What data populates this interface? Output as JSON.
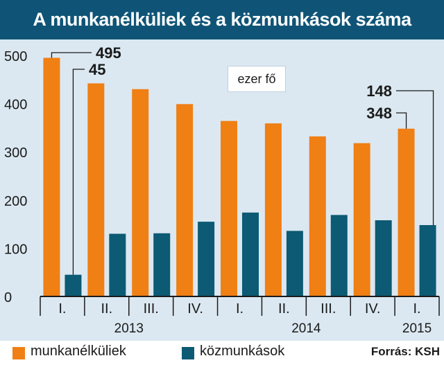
{
  "title": "A munkanélküliek és a közmunkások száma",
  "unit_note": "ezer fő",
  "source": "Forrás: KSH",
  "colors": {
    "title_bg": "#0f5476",
    "plot_bg": "#dbe8f1",
    "unemployed": "#f07f14",
    "public_workers": "#0c5a73",
    "annotation": "#1a1a1a"
  },
  "legend": {
    "unemployed_label": "munkanélküliek",
    "public_workers_label": "közmunkások"
  },
  "chart_data": {
    "type": "bar",
    "categories": [
      "I.",
      "II.",
      "III.",
      "IV.",
      "I.",
      "II.",
      "III.",
      "IV.",
      "I."
    ],
    "year_groups": [
      {
        "label": "2013",
        "start": 0,
        "end": 3
      },
      {
        "label": "2014",
        "start": 4,
        "end": 7
      },
      {
        "label": "2015",
        "start": 8,
        "end": 8
      }
    ],
    "series": [
      {
        "name": "munkanélküliek",
        "values": [
          495,
          442,
          430,
          399,
          364,
          359,
          332,
          318,
          348
        ]
      },
      {
        "name": "közmunkások",
        "values": [
          45,
          130,
          131,
          155,
          174,
          136,
          169,
          158,
          148
        ]
      }
    ],
    "ylim": [
      0,
      500
    ],
    "yticks": [
      0,
      100,
      200,
      300,
      400,
      500
    ],
    "annotations": [
      {
        "text": "495",
        "series": 0,
        "index": 0
      },
      {
        "text": "45",
        "series": 1,
        "index": 0
      },
      {
        "text": "148",
        "series": 1,
        "index": 8
      },
      {
        "text": "348",
        "series": 0,
        "index": 8
      }
    ],
    "grid": false
  }
}
